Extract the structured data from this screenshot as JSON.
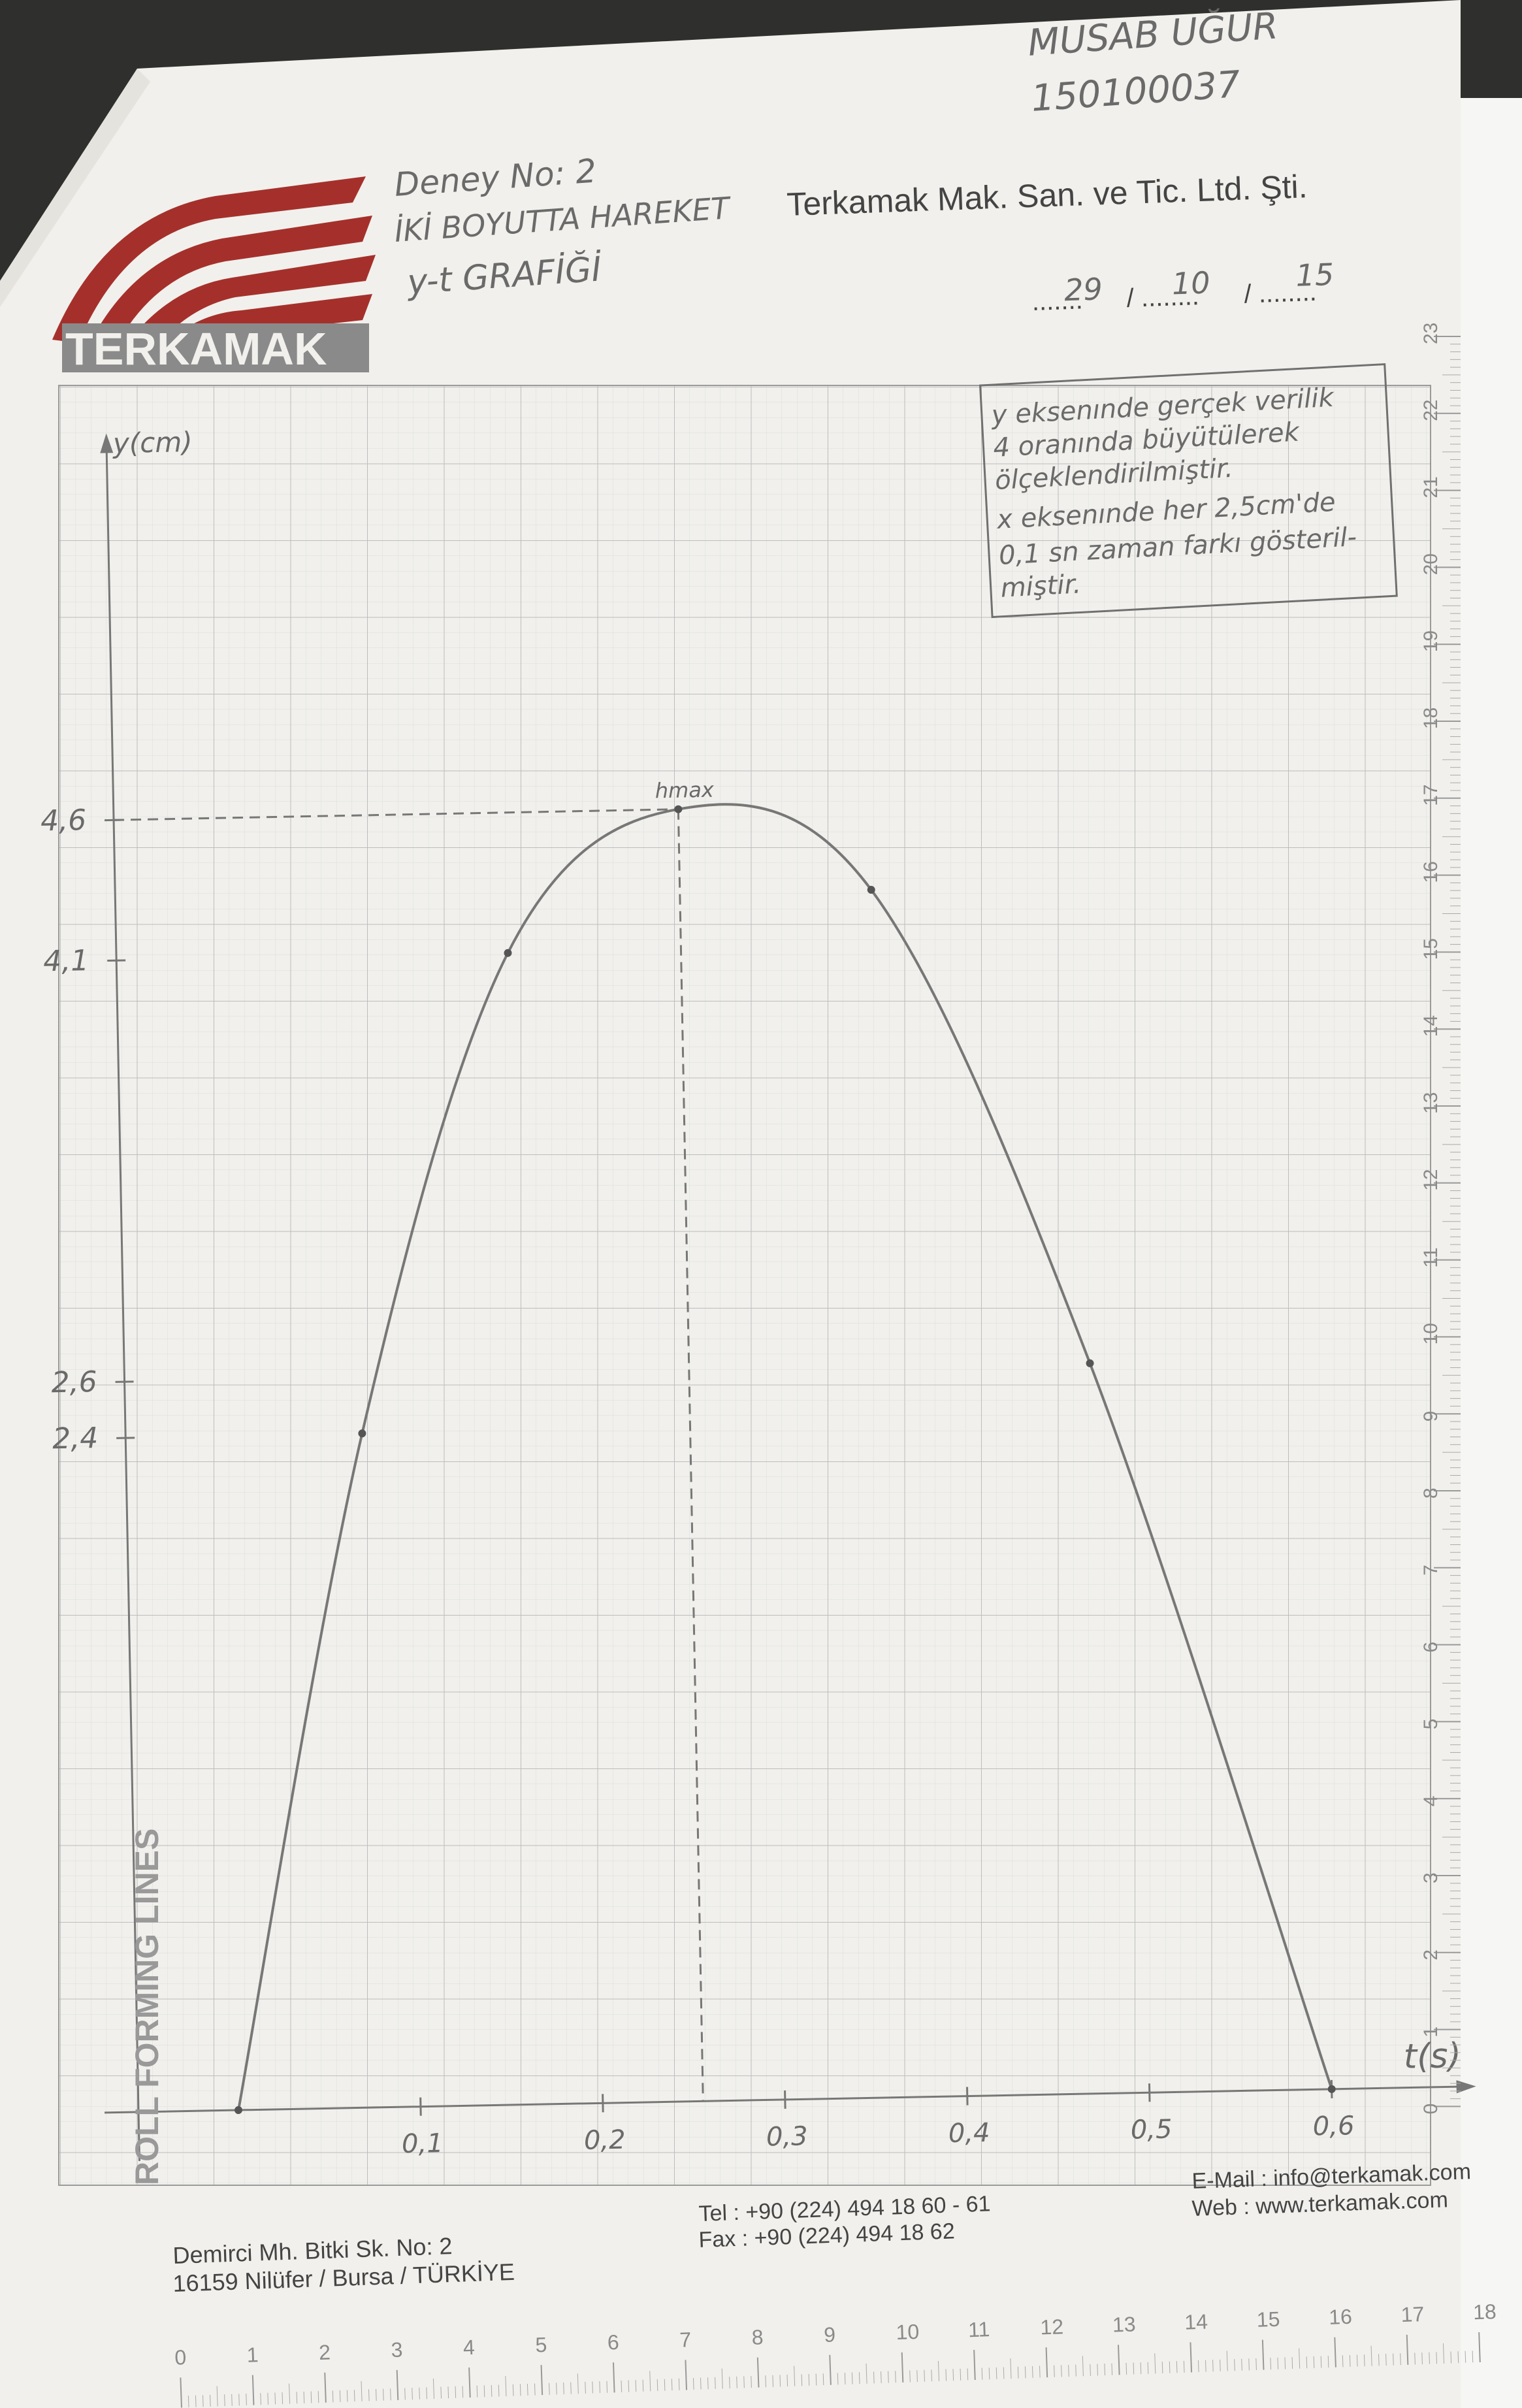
{
  "header": {
    "author": "MUSAB UĞUR",
    "student_no": "150100037",
    "experiment": "Deney No: 2",
    "topic": "İKİ BOYUTTA HAREKET",
    "graph_title": "y-t GRAFİĞİ",
    "company": "Terkamak Mak. San. ve Tic. Ltd. Şti.",
    "logo_text": "TERKAMAK",
    "date": {
      "day": "29",
      "month": "10",
      "year": "15"
    }
  },
  "note": {
    "line1": "y eksenınde gerçek verilik",
    "line2": "4 oranında büyütülerek",
    "line3": "ölçeklendirilmiştir.",
    "line4": "x eksenınde her 2,5cm'de",
    "line5": "0,1 sn zaman farkı gösteril-",
    "line6": "miştir."
  },
  "side_text": "ROLL FORMING LINES",
  "footer": {
    "address1": "Demirci Mh. Bitki Sk. No: 2",
    "address2": "16159 Nilüfer / Bursa / TÜRKİYE",
    "tel": "Tel  : +90 (224) 494 18 60 - 61",
    "fax": "Fax : +90 (224) 494 18 62",
    "email": "E-Mail : info@terkamak.com",
    "web": "Web    : www.terkamak.com"
  },
  "ruler_bottom": [
    "0",
    "1",
    "2",
    "3",
    "4",
    "5",
    "6",
    "7",
    "8",
    "9",
    "10",
    "11",
    "12",
    "13",
    "14",
    "15",
    "16",
    "17",
    "18"
  ],
  "ruler_right": [
    "23",
    "22",
    "21",
    "20",
    "19",
    "18",
    "17",
    "16",
    "15",
    "14",
    "13",
    "12",
    "11",
    "10",
    "9",
    "8",
    "7",
    "6",
    "5",
    "4",
    "3",
    "2",
    "1",
    "0"
  ],
  "chart_data": {
    "type": "line",
    "xlabel": "t(s)",
    "ylabel": "y(cm)",
    "x_ticks": [
      "0,1",
      "0,2",
      "0,3",
      "0,4",
      "0,5",
      "0,6"
    ],
    "y_ticks": [
      "2,4",
      "2,6",
      "4,1",
      "4,6"
    ],
    "peak_label": "hmax",
    "xlim": [
      0,
      0.6
    ],
    "series": [
      {
        "points": [
          {
            "x": 0.0,
            "y": 0.0
          },
          {
            "x": 0.075,
            "y": 2.4
          },
          {
            "x": 0.16,
            "y": 4.1
          },
          {
            "x": 0.255,
            "y": 4.6
          },
          {
            "x": 0.36,
            "y": 4.3
          },
          {
            "x": 0.475,
            "y": 2.6
          },
          {
            "x": 0.6,
            "y": 0.0
          }
        ]
      }
    ],
    "grid": true
  },
  "colors": {
    "logo_red": "#a5302b",
    "grid_minor": "#d9d9d9",
    "grid_major": "#bcbcbc",
    "pencil": "#777777",
    "paper": "#f1f0ec"
  }
}
